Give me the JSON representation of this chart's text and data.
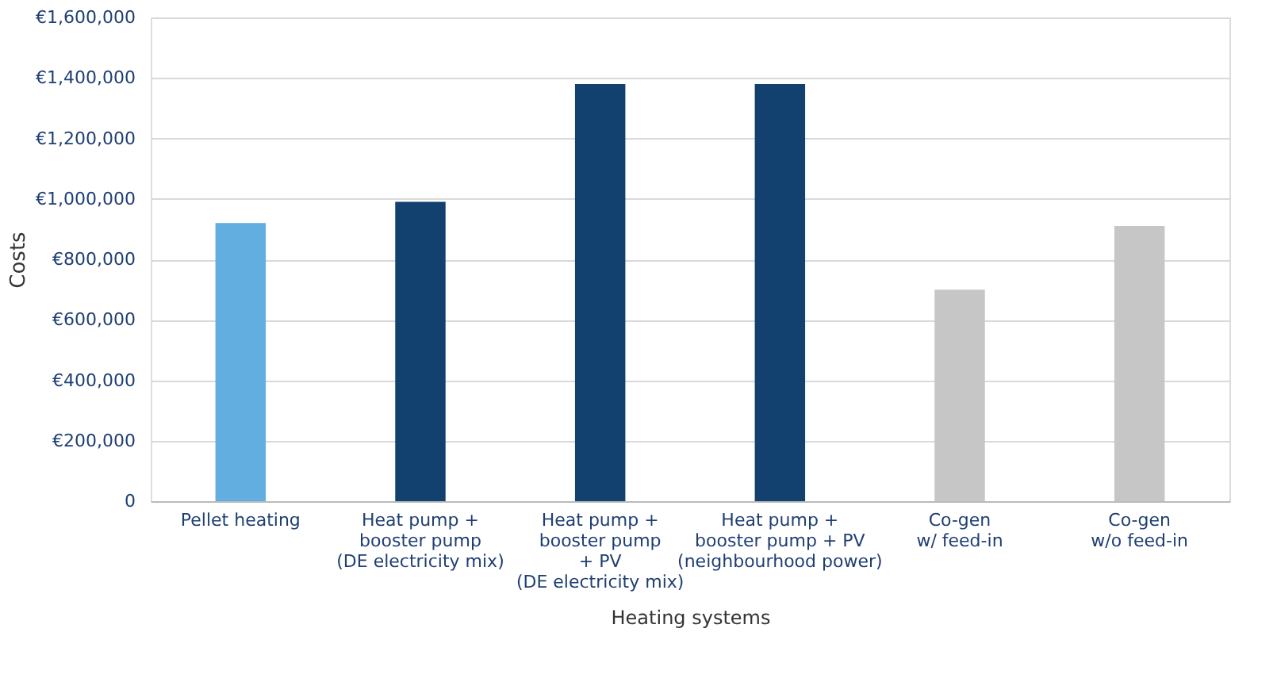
{
  "chart_data": {
    "type": "bar",
    "xlabel": "Heating systems",
    "ylabel": "Costs",
    "categories": [
      "Pellet heating",
      "Heat pump +\nbooster pump\n(DE electricity mix)",
      "Heat pump +\nbooster pump\n+ PV\n(DE electricity mix)",
      "Heat pump +\nbooster pump + PV\n(neighbourhood power)",
      "Co-gen\nw/ feed-in",
      "Co-gen\nw/o feed-in"
    ],
    "values": [
      920000,
      990000,
      1380000,
      1380000,
      700000,
      910000
    ],
    "colors": [
      "#62aee0",
      "#12406f",
      "#12406f",
      "#12406f",
      "#c6c6c6",
      "#c6c6c6"
    ],
    "ylim": [
      0,
      1600000
    ],
    "yticks": [
      0,
      {
        "value": 200000,
        "label": "€200,000"
      },
      {
        "value": 400000,
        "label": "€400,000"
      },
      {
        "value": 600000,
        "label": "€600,000"
      },
      {
        "value": 800000,
        "label": "€800,000"
      },
      {
        "value": 1000000,
        "label": "€1,000,000"
      },
      {
        "value": 1200000,
        "label": "€1,200,000"
      },
      {
        "value": 1400000,
        "label": "€1,400,000"
      },
      {
        "value": 1600000,
        "label": "€1,600,000"
      }
    ],
    "grid": "y"
  }
}
